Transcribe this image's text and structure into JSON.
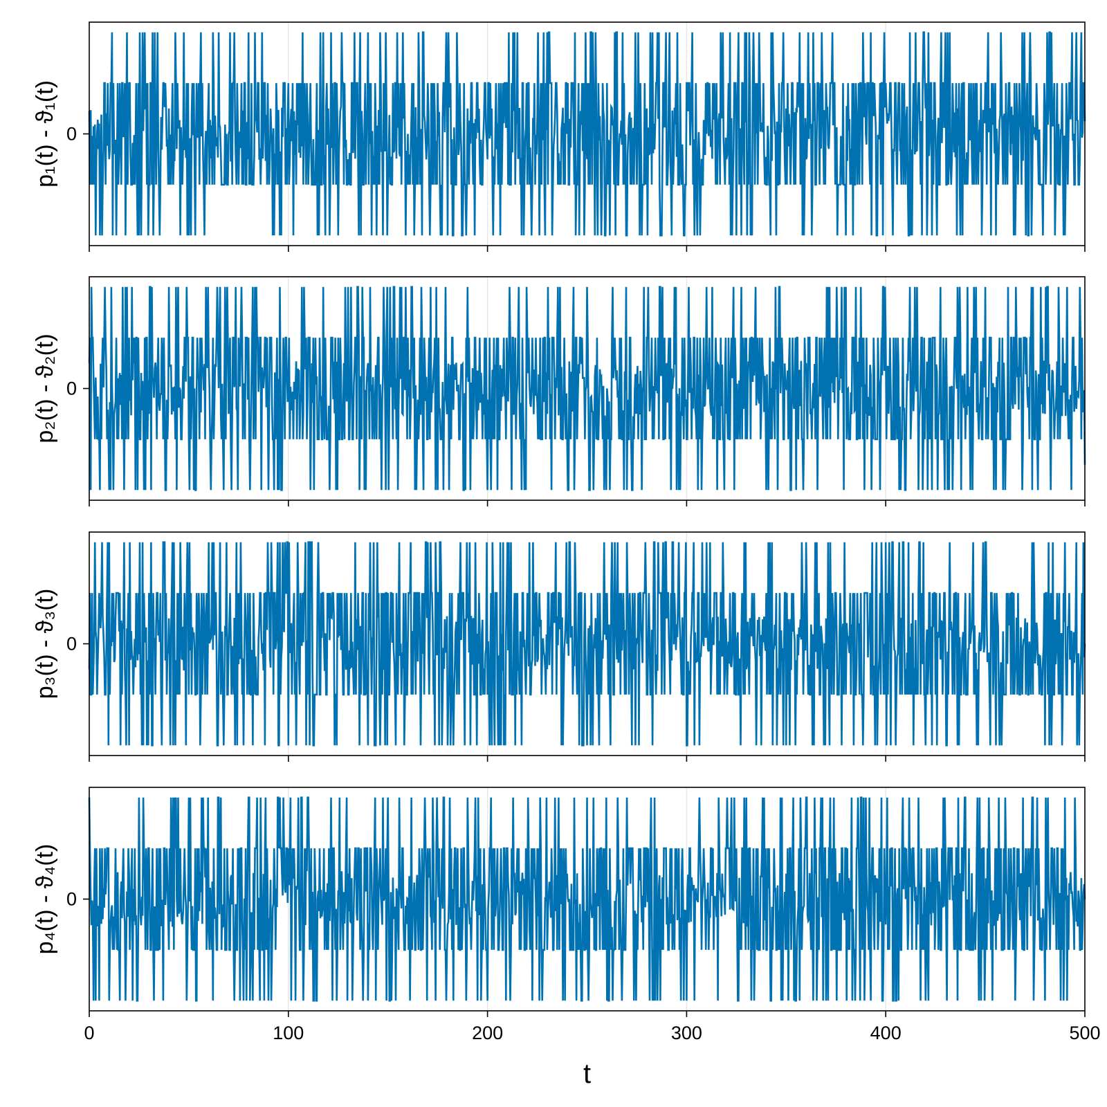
{
  "chart_data": {
    "type": "line",
    "layout": "4 vertically stacked panels sharing the x axis",
    "xlabel": "t",
    "xlim": [
      0,
      500
    ],
    "x_ticks": [
      "0",
      "100",
      "200",
      "300",
      "400",
      "500"
    ],
    "grid": true,
    "line_color": "#0072B2",
    "panels": [
      {
        "ylabel": "p₁(t) - ϑ₁(t)",
        "y_ticks": [
          "0"
        ],
        "ylim": [
          -4.4,
          4.4
        ],
        "series": [
          {
            "x": [
              0,
              10,
              20,
              30,
              40,
              50,
              60,
              70,
              80,
              90,
              100,
              110,
              120,
              130,
              140,
              150,
              160,
              170,
              180,
              190,
              200,
              210,
              220,
              230,
              240,
              250,
              260,
              270,
              280,
              290,
              300,
              310,
              320,
              330,
              340,
              350,
              360,
              370,
              380,
              390,
              400,
              410,
              420,
              430,
              440,
              450,
              460,
              470,
              480,
              490,
              500
            ],
            "y": [
              0.9,
              -1.0,
              2.0,
              -2.0,
              1.0,
              -4.0,
              2.0,
              0.0,
              4.0,
              -1.0,
              2.0,
              -2.0,
              1.0,
              -1.0,
              4.0,
              -2.0,
              0.0,
              2.0,
              -4.0,
              1.0,
              -1.0,
              2.0,
              -2.0,
              4.0,
              0.0,
              -1.0,
              2.0,
              -4.0,
              1.0,
              -2.0,
              2.0,
              0.0,
              -1.0,
              4.0,
              -2.0,
              1.0,
              -1.0,
              2.0,
              -4.0,
              0.0,
              2.0,
              -2.0,
              1.0,
              4.0,
              -1.0,
              2.0,
              -2.0,
              0.0,
              1.0,
              -4.0,
              0.5
            ]
          }
        ]
      },
      {
        "ylabel": "p₂(t) - ϑ₂(t)",
        "y_ticks": [
          "0"
        ],
        "ylim": [
          -4.4,
          4.4
        ],
        "series": [
          {
            "x": [
              0,
              10,
              20,
              30,
              40,
              50,
              60,
              70,
              80,
              90,
              100,
              110,
              120,
              130,
              140,
              150,
              160,
              170,
              180,
              190,
              200,
              210,
              220,
              230,
              240,
              250,
              260,
              270,
              280,
              290,
              300,
              310,
              320,
              330,
              340,
              350,
              360,
              370,
              380,
              390,
              400,
              410,
              420,
              430,
              440,
              450,
              460,
              470,
              480,
              490,
              500
            ],
            "y": [
              1.0,
              -4.0,
              2.0,
              -1.0,
              4.0,
              -2.0,
              1.0,
              -1.0,
              2.0,
              -4.0,
              0.0,
              2.0,
              -2.0,
              4.0,
              1.0,
              -1.0,
              2.0,
              -2.0,
              0.0,
              4.0,
              -4.0,
              1.0,
              2.0,
              -1.0,
              -2.0,
              4.0,
              0.0,
              -4.0,
              2.0,
              1.0,
              -2.0,
              4.0,
              -1.0,
              2.0,
              -4.0,
              0.0,
              1.0,
              -2.0,
              4.0,
              -1.0,
              2.0,
              -4.0,
              0.0,
              1.0,
              -2.0,
              4.0,
              -4.0,
              2.0,
              -1.0,
              1.0,
              -3.0
            ]
          }
        ]
      },
      {
        "ylabel": "p₃(t) - ϑ₃(t)",
        "y_ticks": [
          "0"
        ],
        "ylim": [
          -4.4,
          4.4
        ],
        "series": [
          {
            "x": [
              0,
              10,
              20,
              30,
              40,
              50,
              60,
              70,
              80,
              90,
              100,
              110,
              120,
              130,
              140,
              150,
              160,
              170,
              180,
              190,
              200,
              210,
              220,
              230,
              240,
              250,
              260,
              270,
              280,
              290,
              300,
              310,
              320,
              330,
              340,
              350,
              360,
              370,
              380,
              390,
              400,
              410,
              420,
              430,
              440,
              450,
              460,
              470,
              480,
              490,
              500
            ],
            "y": [
              -1.0,
              4.0,
              -4.0,
              2.0,
              1.0,
              -2.0,
              4.0,
              0.0,
              -1.0,
              2.0,
              -4.0,
              4.0,
              1.0,
              -2.0,
              -4.0,
              2.0,
              0.0,
              4.0,
              -4.0,
              1.0,
              -2.0,
              4.0,
              2.0,
              -1.0,
              0.0,
              -4.0,
              2.0,
              4.0,
              -2.0,
              1.0,
              -4.0,
              4.0,
              0.0,
              -1.0,
              2.0,
              -4.0,
              4.0,
              1.0,
              -2.0,
              2.0,
              4.0,
              -1.0,
              -4.0,
              0.0,
              2.0,
              4.0,
              -2.0,
              1.0,
              -4.0,
              4.0,
              0.0
            ]
          }
        ]
      },
      {
        "ylabel": "p₄(t) - ϑ₄(t)",
        "y_ticks": [
          "0"
        ],
        "ylim": [
          -4.4,
          4.4
        ],
        "series": [
          {
            "x": [
              0,
              10,
              20,
              30,
              40,
              50,
              60,
              70,
              80,
              90,
              100,
              110,
              120,
              130,
              140,
              150,
              160,
              170,
              180,
              190,
              200,
              210,
              220,
              230,
              240,
              250,
              260,
              270,
              280,
              290,
              300,
              310,
              320,
              330,
              340,
              350,
              360,
              370,
              380,
              390,
              400,
              410,
              420,
              430,
              440,
              450,
              460,
              470,
              480,
              490,
              500
            ],
            "y": [
              4.0,
              -4.0,
              1.0,
              2.0,
              -2.0,
              4.0,
              -1.0,
              0.0,
              4.0,
              -4.0,
              2.0,
              4.0,
              -2.0,
              1.0,
              -4.0,
              4.0,
              0.0,
              2.0,
              -1.0,
              4.0,
              -4.0,
              2.0,
              0.0,
              -2.0,
              1.0,
              4.0,
              -4.0,
              4.0,
              2.0,
              -1.0,
              -4.0,
              0.0,
              2.0,
              4.0,
              -2.0,
              1.0,
              4.0,
              -4.0,
              2.0,
              4.0,
              -1.0,
              0.0,
              -4.0,
              2.0,
              4.0,
              -2.0,
              4.0,
              1.0,
              -4.0,
              4.0,
              0.0
            ]
          }
        ]
      }
    ]
  }
}
